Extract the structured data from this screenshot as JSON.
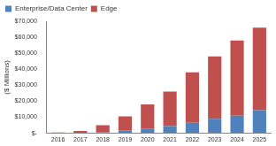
{
  "chart_data": {
    "type": "bar",
    "stacked": true,
    "grid": false,
    "legend": "top-left",
    "y_label": "($ Millions)",
    "categories": [
      "2016",
      "2017",
      "2018",
      "2019",
      "2020",
      "2021",
      "2022",
      "2023",
      "2024",
      "2025"
    ],
    "series": [
      {
        "name": "Enterprise/Data Center",
        "color": "#4f81bd",
        "values": [
          100,
          300,
          800,
          1800,
          3000,
          4500,
          6500,
          9000,
          11000,
          14500
        ]
      },
      {
        "name": "Edge",
        "color": "#c0504d",
        "values": [
          400,
          1200,
          4200,
          8700,
          15000,
          21500,
          31500,
          39000,
          47000,
          51500
        ]
      }
    ],
    "ylim": [
      0,
      70000
    ],
    "yticks": [
      {
        "value": 0,
        "label": "$-"
      },
      {
        "value": 10000,
        "label": "$10,000"
      },
      {
        "value": 20000,
        "label": "$20,000"
      },
      {
        "value": 30000,
        "label": "$30,000"
      },
      {
        "value": 40000,
        "label": "$40,000"
      },
      {
        "value": 50000,
        "label": "$50,000"
      },
      {
        "value": 60000,
        "label": "$60,000"
      },
      {
        "value": 70000,
        "label": "$70,000"
      }
    ]
  }
}
